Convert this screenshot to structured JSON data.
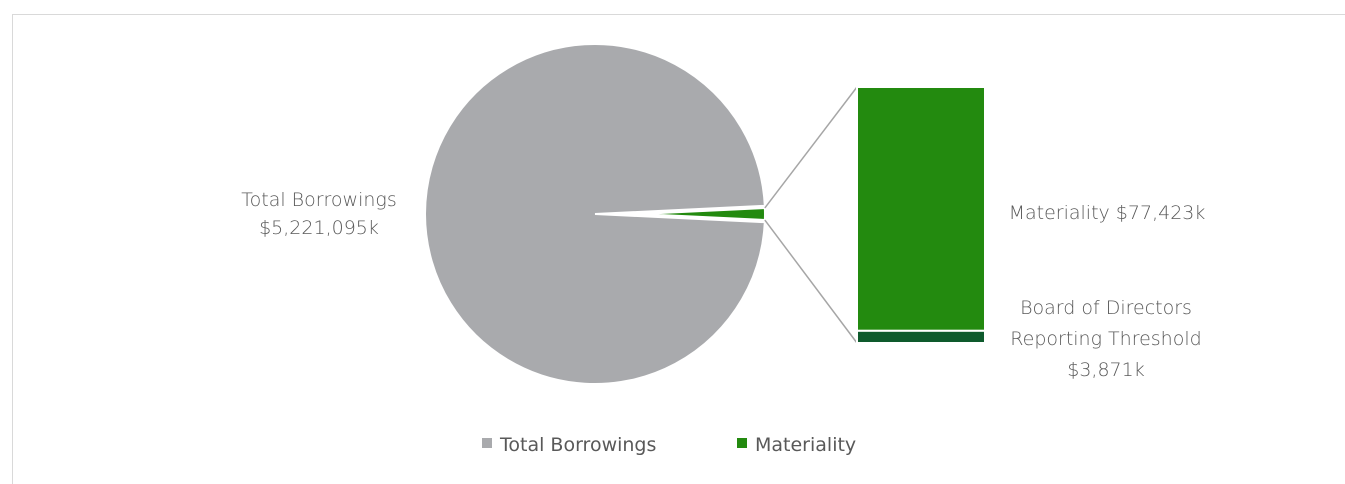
{
  "chart_data": {
    "type": "pie",
    "subtype": "bar-of-pie",
    "title": "",
    "slices": [
      {
        "name": "Total Borrowings",
        "label_line1": "Total Borrowings",
        "label_line2": "$5,221,095k",
        "value": 5221095,
        "color": "#A9AAAD"
      },
      {
        "name": "Materiality",
        "value": 81294,
        "color": "#238A0F"
      }
    ],
    "breakout_bar": {
      "segments": [
        {
          "name": "Materiality",
          "label": "Materiality $77,423k",
          "value": 77423,
          "color": "#238A0F"
        },
        {
          "name": "Board of Directors Reporting Threshold",
          "label_lines": [
            "Board of Directors",
            "Reporting Threshold",
            "$3,871k"
          ],
          "value": 3871,
          "color": "#0E5A2C"
        }
      ]
    },
    "legend": {
      "placement": "bottom",
      "entries": [
        {
          "label": "Total Borrowings",
          "color": "#A9AAAD"
        },
        {
          "label": "Materiality",
          "color": "#238A0F"
        }
      ]
    }
  }
}
